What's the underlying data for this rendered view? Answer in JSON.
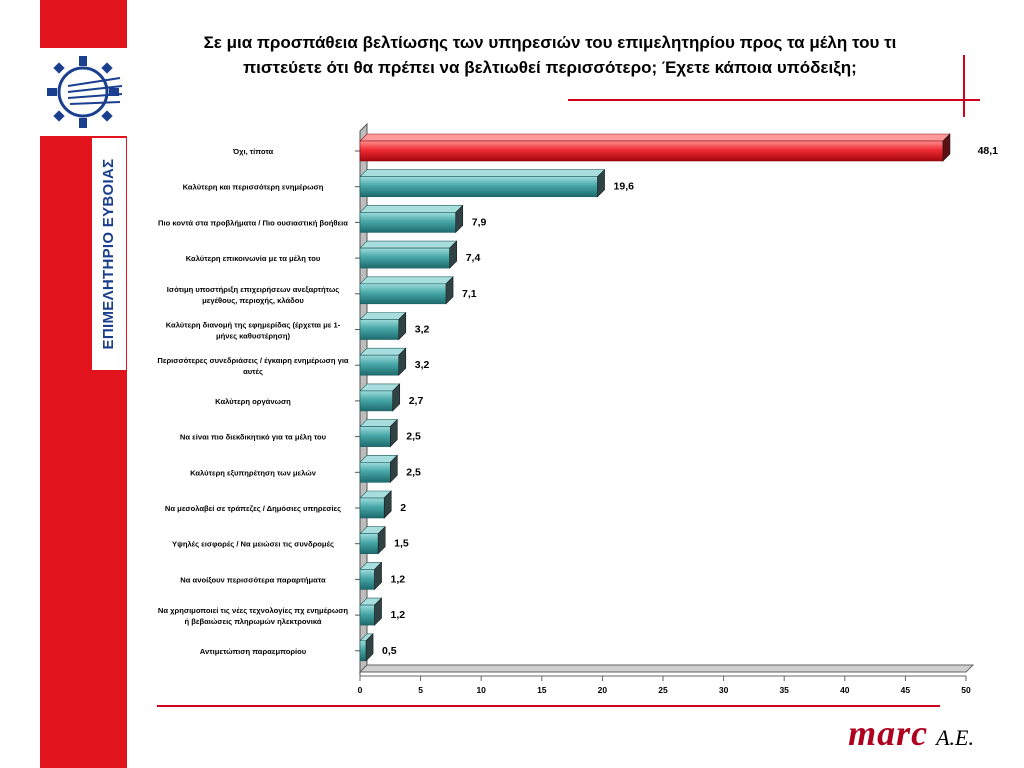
{
  "title_line1": "Σε μια προσπάθεια βελτίωσης των υπηρεσιών του επιμελητηρίου προς τα μέλη του τι",
  "title_line2": "πιστεύετε ότι θα πρέπει να βελτιωθεί περισσότερο; Έχετε κάποια υπόδειξη;",
  "organization": "ΕΠΙΜΕΛΗΤΗΡΙΟ ΕΥΒΟΙΑΣ",
  "brand_logo": "marc",
  "brand_suffix": "A.E.",
  "colors": {
    "accent": "#e1141e",
    "highlight_bar": "#e8232f",
    "bar": "#3a9a9a",
    "org_text": "#1b3f8f"
  },
  "chart_data": {
    "type": "bar",
    "orientation": "horizontal",
    "categories": [
      "Όχι, τίποτα",
      "Καλύτερη και περισσότερη ενημέρωση",
      "Πιο κοντά στα προβλήματα / Πιο ουσιαστική βοήθεια",
      "Καλύτερη  επικοινωνία με τα μέλη του",
      "Ισότιμη υποστήριξη επιχειρήσεων ανεξαρτήτως μεγέθους, περιοχής, κλάδου",
      "Καλύτερη διανομή της εφημερίδας (έρχεται με 1-μήνες καθυστέρηση)",
      "Περισσότερες συνεδριάσεις / έγκαιρη ενημέρωση για αυτές",
      "Καλύτερη οργάνωση",
      "Να είναι πιο διεκδικητικό για τα μέλη του",
      "Καλύτερη εξυπηρέτηση των μελών",
      "Να μεσολαβεί σε τράπεζες / Δημόσιες υπηρεσίες",
      "Υψηλές εισφορές / Να μειώσει τις συνδρομές",
      "Να ανοίξουν περισσότερα παραρτήματα",
      "Να χρησιμοποιεί τις νέες τεχνολογίες πχ ενημέρωση ή βεβαιώσεις πληρωμών ηλεκτρονικά",
      "Αντιμετώπιση παραεμπορίου"
    ],
    "category_lines": [
      [
        "Όχι, τίποτα"
      ],
      [
        "Καλύτερη και περισσότερη ενημέρωση"
      ],
      [
        "Πιο κοντά στα προβλήματα / Πιο ουσιαστική βοήθεια"
      ],
      [
        "Καλύτερη  επικοινωνία με τα μέλη του"
      ],
      [
        "Ισότιμη υποστήριξη επιχειρήσεων ανεξαρτήτως",
        "μεγέθους, περιοχής, κλάδου"
      ],
      [
        "Καλύτερη διανομή της εφημερίδας (έρχεται με 1-",
        "μήνες καθυστέρηση)"
      ],
      [
        "Περισσότερες συνεδριάσεις / έγκαιρη ενημέρωση για",
        "αυτές"
      ],
      [
        "Καλύτερη οργάνωση"
      ],
      [
        "Να είναι πιο διεκδικητικό για τα μέλη του"
      ],
      [
        "Καλύτερη εξυπηρέτηση των μελών"
      ],
      [
        "Να μεσολαβεί σε τράπεζες / Δημόσιες υπηρεσίες"
      ],
      [
        "Υψηλές εισφορές / Να μειώσει τις συνδρομές"
      ],
      [
        "Να ανοίξουν περισσότερα παραρτήματα"
      ],
      [
        "Να χρησιμοποιεί τις νέες τεχνολογίες πχ ενημέρωση",
        "ή βεβαιώσεις πληρωμών ηλεκτρονικά"
      ],
      [
        "Αντιμετώπιση παραεμπορίου"
      ]
    ],
    "values": [
      48.1,
      19.6,
      7.9,
      7.4,
      7.1,
      3.2,
      3.2,
      2.7,
      2.5,
      2.5,
      2,
      1.5,
      1.2,
      1.2,
      0.5
    ],
    "value_labels": [
      "48,1",
      "19,6",
      "7,9",
      "7,4",
      "7,1",
      "3,2",
      "3,2",
      "2,7",
      "2,5",
      "2,5",
      "2",
      "1,5",
      "1,2",
      "1,2",
      "0,5"
    ],
    "highlight_index": 0,
    "xlim": [
      0,
      50
    ],
    "xticks": [
      0,
      5,
      10,
      15,
      20,
      25,
      30,
      35,
      40,
      45,
      50
    ],
    "grid": false,
    "legend": "none"
  }
}
